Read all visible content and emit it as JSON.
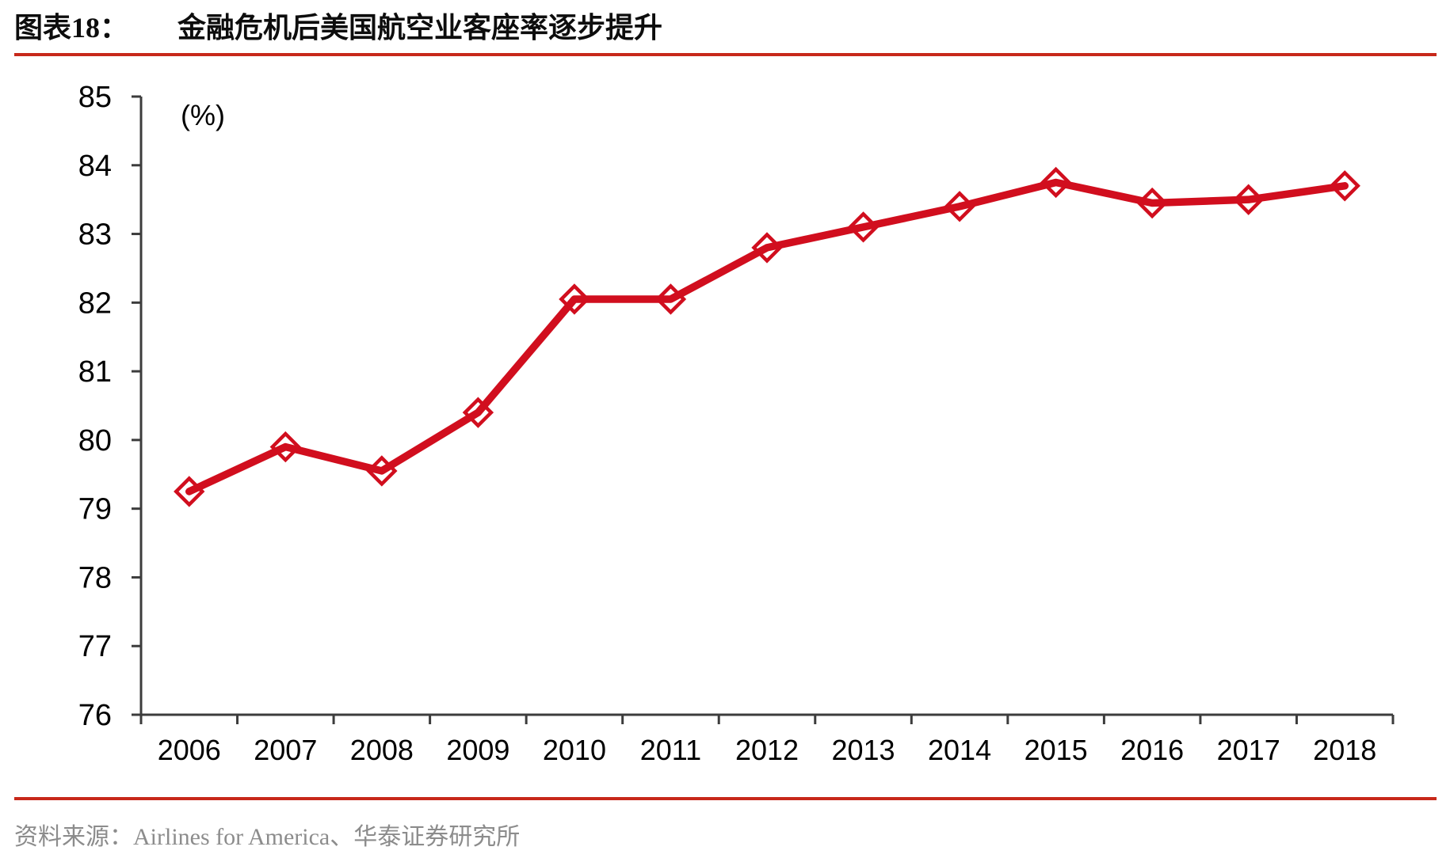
{
  "figure": {
    "label": "图表18：",
    "title": "金融危机后美国航空业客座率逐步提升"
  },
  "source": {
    "text": "资料来源：Airlines for America、华泰证券研究所"
  },
  "colors": {
    "line": "#D10E1E",
    "rule": "#C7281A",
    "axis": "#3C3C3C",
    "tick_label": "#000000",
    "source_text": "#8C8C8C",
    "background": "#FFFFFF"
  },
  "chart_data": {
    "type": "line",
    "title": "金融危机后美国航空业客座率逐步提升",
    "unit_label": "(%)",
    "xlabel": "",
    "ylabel": "(%)",
    "categories": [
      "2006",
      "2007",
      "2008",
      "2009",
      "2010",
      "2011",
      "2012",
      "2013",
      "2014",
      "2015",
      "2016",
      "2017",
      "2018"
    ],
    "values": [
      79.25,
      79.9,
      79.55,
      80.4,
      82.05,
      82.05,
      82.8,
      83.1,
      83.4,
      83.75,
      83.45,
      83.5,
      83.7
    ],
    "ylim": [
      76,
      85
    ],
    "ytick_step": 1,
    "grid": false,
    "legend": false,
    "marker": "open-diamond",
    "line_color": "#D10E1E"
  }
}
